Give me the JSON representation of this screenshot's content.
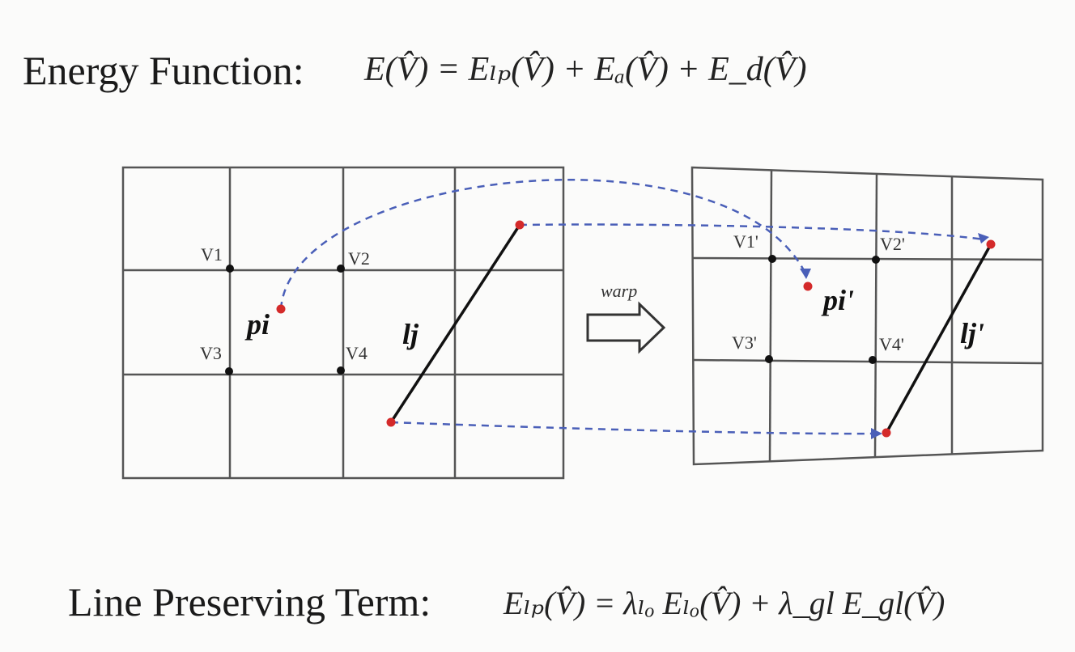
{
  "headings": {
    "energy_label": "Energy Function:",
    "line_label": "Line Preserving Term:"
  },
  "formulas": {
    "energy": "E(V̂) = Eₗₚ(V̂) + Eₐ(V̂) + E_d(V̂)",
    "line_preserving": "Eₗₚ(V̂) = λₗₒ Eₗₒ(V̂) + λ_gl E_gl(V̂)"
  },
  "diagram": {
    "left_vertices": [
      "V1",
      "V2",
      "V3",
      "V4"
    ],
    "right_vertices": [
      "V1'",
      "V2'",
      "V3'",
      "V4'"
    ],
    "point_label": "pi",
    "point_label_warped": "pi'",
    "line_label": "lj",
    "line_label_warped": "lj'",
    "warp_label": "warp"
  },
  "colors": {
    "grid": "#555555",
    "point": "#d42a2a",
    "arrow": "#4a5fb8",
    "line": "#111111"
  }
}
